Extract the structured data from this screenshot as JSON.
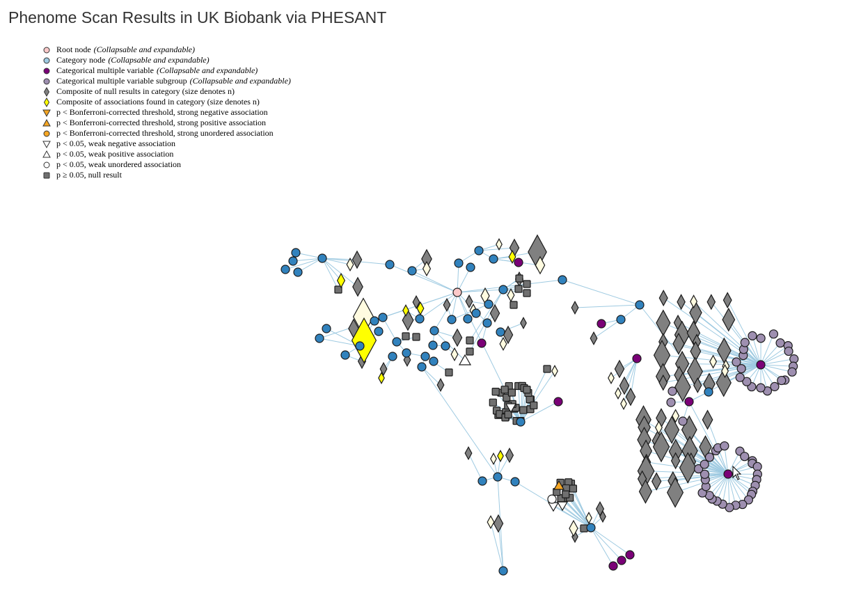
{
  "title": "Phenome Scan Results in UK Biobank via PHESANT",
  "legend": [
    {
      "label": "Root node",
      "note": "(Collapsable and expandable)",
      "shape": "circle",
      "color": "#fbc9c9"
    },
    {
      "label": "Category node",
      "note": "(Collapsable and expandable)",
      "shape": "circle",
      "color": "#9ecae1"
    },
    {
      "label": "Categorical multiple variable",
      "note": "(Collapsable and expandable)",
      "shape": "circle",
      "color": "#7a0177"
    },
    {
      "label": "Categorical multiple variable subgroup",
      "note": "(Collapsable and expandable)",
      "shape": "circle",
      "color": "#9e8fb0"
    },
    {
      "label": "Composite of null results in category (size denotes n)",
      "note": "",
      "shape": "diamond",
      "color": "#808080"
    },
    {
      "label": "Composite of associations found in category (size denotes n)",
      "note": "",
      "shape": "diamond",
      "color": "#ffff00"
    },
    {
      "label": "p < Bonferroni-corrected threshold, strong negative association",
      "note": "",
      "shape": "triangle-down",
      "color": "#f5a623"
    },
    {
      "label": "p < Bonferroni-corrected threshold, strong positive association",
      "note": "",
      "shape": "triangle-up",
      "color": "#f5a623"
    },
    {
      "label": "p < Bonferroni-corrected threshold, strong unordered association",
      "note": "",
      "shape": "circle",
      "color": "#f5a623"
    },
    {
      "label": "p < 0.05, weak negative association",
      "note": "",
      "shape": "triangle-down",
      "color": "#ffffff"
    },
    {
      "label": "p < 0.05, weak positive association",
      "note": "",
      "shape": "triangle-up",
      "color": "#ffffff"
    },
    {
      "label": "p < 0.05, weak unordered association",
      "note": "",
      "shape": "circle",
      "color": "#ffffff"
    },
    {
      "label": "p ≥ 0.05, null result",
      "note": "",
      "shape": "square",
      "color": "#707070"
    }
  ],
  "colors": {
    "root": "#fbc9c9",
    "category": "#3182bd",
    "multi": "#7a0177",
    "subgroup": "#9e8fb0",
    "null_composite": "#808080",
    "assoc_composite": "#ffff00",
    "weak_composite": "#fffbe0",
    "strong": "#f5a623",
    "weak": "#ffffff",
    "null": "#707070",
    "edge": "#9ecae1"
  }
}
